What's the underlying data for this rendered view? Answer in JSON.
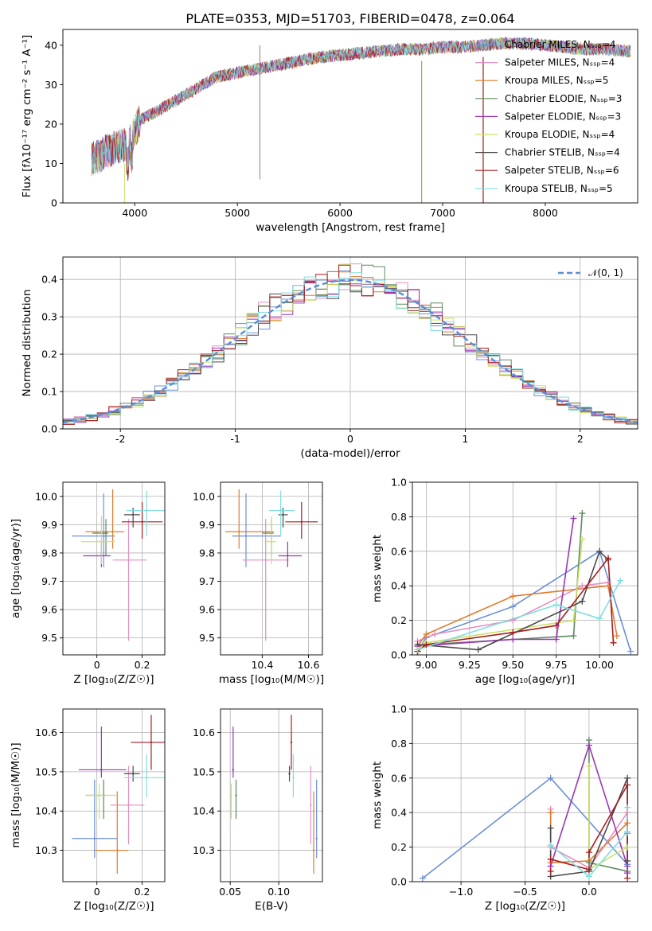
{
  "colors": {
    "Chabrier MILES": "#6a8fd8",
    "Salpeter MILES": "#e58fc1",
    "Kroupa MILES": "#e07b2c",
    "Chabrier ELODIE": "#5e8a5e",
    "Salpeter ELODIE": "#9b35b5",
    "Kroupa ELODIE": "#cbe066",
    "Chabrier STELIB": "#4a4a4a",
    "Salpeter STELIB": "#a81c1c",
    "Kroupa STELIB": "#80dde0",
    "gauss": "#5b8bd9"
  },
  "chart_data": [
    {
      "id": "spectrum",
      "type": "line",
      "title": "PLATE=0353, MJD=51703, FIBERID=0478, z=0.064",
      "xlabel": "wavelength [Angstrom, rest frame]",
      "ylabel": "Flux [fλ10⁻¹⁷ erg cm⁻² s⁻¹ A⁻¹]",
      "xlim": [
        3300,
        8900
      ],
      "ylim": [
        0,
        44
      ],
      "xticks": [
        4000,
        5000,
        6000,
        7000,
        8000
      ],
      "yticks": [
        0,
        10,
        20,
        30,
        40
      ],
      "continuum": [
        [
          3580,
          11
        ],
        [
          3800,
          14
        ],
        [
          3950,
          15
        ],
        [
          4050,
          21
        ],
        [
          4200,
          23
        ],
        [
          4400,
          26
        ],
        [
          4600,
          29
        ],
        [
          4800,
          32
        ],
        [
          5000,
          33
        ],
        [
          5200,
          34
        ],
        [
          5400,
          35
        ],
        [
          5600,
          36
        ],
        [
          5800,
          37
        ],
        [
          6000,
          37.5
        ],
        [
          6200,
          38
        ],
        [
          6400,
          38.5
        ],
        [
          6600,
          39
        ],
        [
          6800,
          39
        ],
        [
          7000,
          39.5
        ],
        [
          7200,
          39.5
        ],
        [
          7400,
          40
        ],
        [
          7600,
          40.5
        ],
        [
          7800,
          40.5
        ],
        [
          8000,
          40
        ],
        [
          8200,
          39.5
        ],
        [
          8400,
          39
        ],
        [
          8600,
          39
        ],
        [
          8800,
          38.5
        ]
      ],
      "legend_labels": [
        "Chabrier MILES, Nₛₛₚ=4",
        "Salpeter MILES, Nₛₛₚ=4",
        "Kroupa MILES, Nₛₛₚ=5",
        "Chabrier ELODIE, Nₛₛₚ=3",
        "Salpeter ELODIE, Nₛₛₚ=3",
        "Kroupa ELODIE, Nₛₛₚ=4",
        "Chabrier STELIB, Nₛₛₚ=4",
        "Salpeter STELIB, Nₛₛₚ=6",
        "Kroupa STELIB, Nₛₛₚ=5"
      ],
      "legend_models": [
        "Chabrier MILES",
        "Salpeter MILES",
        "Kroupa MILES",
        "Chabrier ELODIE",
        "Salpeter ELODIE",
        "Kroupa ELODIE",
        "Chabrier STELIB",
        "Salpeter STELIB",
        "Kroupa STELIB"
      ],
      "legend_position": "right"
    },
    {
      "id": "residuals",
      "type": "histogram",
      "xlabel": "(data-model)/error",
      "ylabel": "Normed distribution",
      "xlim": [
        -2.5,
        2.5
      ],
      "ylim": [
        0,
        0.46
      ],
      "xticks": [
        -2,
        -1,
        0,
        1,
        2
      ],
      "yticks": [
        0.0,
        0.1,
        0.2,
        0.3,
        0.4
      ],
      "bin_width": 0.1,
      "legend": "𝒩(0, 1)",
      "legend_position": "top-right",
      "series_models": [
        "Chabrier MILES",
        "Salpeter MILES",
        "Kroupa MILES",
        "Chabrier ELODIE",
        "Salpeter ELODIE",
        "Kroupa ELODIE",
        "Chabrier STELIB",
        "Salpeter STELIB",
        "Kroupa STELIB"
      ]
    },
    {
      "id": "age-vs-Z",
      "type": "scatter",
      "xlabel": "Z [log₁₀(Z/Z☉)]",
      "ylabel": "age  [log₁₀(age/yr)]",
      "xlim": [
        -0.15,
        0.3
      ],
      "ylim": [
        9.44,
        10.05
      ],
      "xticks": [
        0.0,
        0.2
      ],
      "yticks": [
        9.5,
        9.6,
        9.7,
        9.8,
        9.9,
        10.0
      ],
      "points": [
        {
          "model": "Chabrier MILES",
          "x": 0.03,
          "y": 9.86,
          "xerr": [
            0.14,
            0.05
          ],
          "yerr": [
            0.11,
            0.15
          ]
        },
        {
          "model": "Salpeter MILES",
          "x": 0.14,
          "y": 9.775,
          "xerr": [
            0.07,
            0.08
          ],
          "yerr": [
            0.285,
            0.145
          ]
        },
        {
          "model": "Kroupa MILES",
          "x": 0.07,
          "y": 9.875,
          "xerr": [
            0.12,
            0.05
          ],
          "yerr": [
            0.06,
            0.15
          ]
        },
        {
          "model": "Chabrier ELODIE",
          "x": 0.04,
          "y": 9.87,
          "xerr": [
            0.06,
            0.01
          ],
          "yerr": [
            0.08,
            0.05
          ]
        },
        {
          "model": "Salpeter ELODIE",
          "x": 0.02,
          "y": 9.79,
          "xerr": [
            0.08,
            0.04
          ],
          "yerr": [
            0.04,
            0.05
          ]
        },
        {
          "model": "Kroupa ELODIE",
          "x": 0.02,
          "y": 9.84,
          "xerr": [
            0.09,
            0.06
          ],
          "yerr": [
            0.08,
            0.09
          ]
        },
        {
          "model": "Chabrier STELIB",
          "x": 0.16,
          "y": 9.935,
          "xerr": [
            0.04,
            0.03
          ],
          "yerr": [
            0.045,
            0.025
          ]
        },
        {
          "model": "Salpeter STELIB",
          "x": 0.2,
          "y": 9.91,
          "xerr": [
            0.09,
            0.09
          ],
          "yerr": [
            0.06,
            0.07
          ]
        },
        {
          "model": "Kroupa STELIB",
          "x": 0.22,
          "y": 9.95,
          "xerr": [
            0.09,
            0.1
          ],
          "yerr": [
            0.09,
            0.07
          ]
        }
      ]
    },
    {
      "id": "age-vs-mass",
      "type": "scatter",
      "xlabel": "mass [log₁₀(M/M☉)]",
      "ylabel": "",
      "xlim": [
        10.22,
        10.66
      ],
      "ylim": [
        9.44,
        10.05
      ],
      "xticks": [
        10.4,
        10.6
      ],
      "yticks": [
        9.5,
        9.6,
        9.7,
        9.8,
        9.9,
        10.0
      ],
      "points": [
        {
          "model": "Chabrier MILES",
          "x": 10.33,
          "y": 9.86,
          "xerr": [
            0.06,
            0.15
          ],
          "yerr": [
            0.11,
            0.15
          ]
        },
        {
          "model": "Salpeter MILES",
          "x": 10.415,
          "y": 9.775,
          "xerr": [
            0.1,
            0.1
          ],
          "yerr": [
            0.285,
            0.145
          ]
        },
        {
          "model": "Kroupa MILES",
          "x": 10.3,
          "y": 9.875,
          "xerr": [
            0.06,
            0.15
          ],
          "yerr": [
            0.06,
            0.15
          ]
        },
        {
          "model": "Chabrier ELODIE",
          "x": 10.44,
          "y": 9.87,
          "xerr": [
            0.04,
            0.01
          ],
          "yerr": [
            0.08,
            0.05
          ]
        },
        {
          "model": "Salpeter ELODIE",
          "x": 10.51,
          "y": 9.79,
          "xerr": [
            0.04,
            0.06
          ],
          "yerr": [
            0.04,
            0.05
          ]
        },
        {
          "model": "Kroupa ELODIE",
          "x": 10.44,
          "y": 9.84,
          "xerr": [
            0.03,
            0.02
          ],
          "yerr": [
            0.08,
            0.09
          ]
        },
        {
          "model": "Chabrier STELIB",
          "x": 10.49,
          "y": 9.935,
          "xerr": [
            0.02,
            0.02
          ],
          "yerr": [
            0.045,
            0.025
          ]
        },
        {
          "model": "Salpeter STELIB",
          "x": 10.57,
          "y": 9.91,
          "xerr": [
            0.07,
            0.07
          ],
          "yerr": [
            0.06,
            0.07
          ]
        },
        {
          "model": "Kroupa STELIB",
          "x": 10.48,
          "y": 9.95,
          "xerr": [
            0.05,
            0.06
          ],
          "yerr": [
            0.09,
            0.07
          ]
        }
      ]
    },
    {
      "id": "weight-vs-age",
      "type": "line",
      "xlabel": "age  [log₁₀(age/yr)]",
      "ylabel": "mass weight",
      "xlim": [
        8.92,
        10.22
      ],
      "ylim": [
        0,
        1.0
      ],
      "xticks": [
        9.0,
        9.25,
        9.5,
        9.75,
        10.0
      ],
      "xtick_labels": [
        "9.00",
        "9.25",
        "9.50",
        "9.75",
        "10.00"
      ],
      "yticks": [
        0.0,
        0.2,
        0.4,
        0.6,
        0.8,
        1.0
      ],
      "series": [
        {
          "model": "Chabrier MILES",
          "x": [
            8.95,
            9.0,
            9.5,
            10.0,
            10.18
          ],
          "y": [
            0.02,
            0.1,
            0.28,
            0.6,
            0.02
          ]
        },
        {
          "model": "Salpeter MILES",
          "x": [
            8.95,
            9.05,
            9.5,
            9.9,
            10.05
          ],
          "y": [
            0.08,
            0.12,
            0.2,
            0.4,
            0.42
          ]
        },
        {
          "model": "Kroupa MILES",
          "x": [
            8.95,
            9.0,
            9.5,
            10.05,
            10.1
          ],
          "y": [
            0.05,
            0.12,
            0.34,
            0.4,
            0.11
          ]
        },
        {
          "model": "Chabrier ELODIE",
          "x": [
            8.95,
            9.0,
            9.85,
            9.9
          ],
          "y": [
            0.02,
            0.06,
            0.11,
            0.82
          ]
        },
        {
          "model": "Salpeter ELODIE",
          "x": [
            8.95,
            9.5,
            9.75,
            9.85
          ],
          "y": [
            0.05,
            0.09,
            0.09,
            0.79
          ]
        },
        {
          "model": "Kroupa ELODIE",
          "x": [
            8.95,
            9.0,
            9.85,
            9.9
          ],
          "y": [
            0.03,
            0.07,
            0.2,
            0.67
          ]
        },
        {
          "model": "Chabrier STELIB",
          "x": [
            8.95,
            9.3,
            9.9,
            10.0,
            10.05
          ],
          "y": [
            0.06,
            0.03,
            0.31,
            0.6,
            0.55
          ]
        },
        {
          "model": "Salpeter STELIB",
          "x": [
            8.95,
            9.0,
            9.5,
            9.75,
            10.05,
            10.08
          ],
          "y": [
            0.02,
            0.06,
            0.13,
            0.17,
            0.56,
            0.07
          ]
        },
        {
          "model": "Kroupa STELIB",
          "x": [
            8.95,
            9.75,
            10.0,
            10.12
          ],
          "y": [
            0.03,
            0.29,
            0.21,
            0.43
          ]
        }
      ]
    },
    {
      "id": "mass-vs-Z",
      "type": "scatter",
      "xlabel": "Z [log₁₀(Z/Z☉)]",
      "ylabel": "mass [log₁₀(M/M☉)]",
      "xlim": [
        -0.15,
        0.3
      ],
      "ylim": [
        10.22,
        10.66
      ],
      "xticks": [
        0.0,
        0.2
      ],
      "yticks": [
        10.3,
        10.4,
        10.5,
        10.6
      ],
      "points": [
        {
          "model": "Chabrier MILES",
          "x": -0.01,
          "y": 10.33,
          "xerr": [
            0.1,
            0.1
          ],
          "yerr": [
            0.05,
            0.15
          ]
        },
        {
          "model": "Salpeter MILES",
          "x": 0.14,
          "y": 10.415,
          "xerr": [
            0.08,
            0.07
          ],
          "yerr": [
            0.1,
            0.1
          ]
        },
        {
          "model": "Kroupa MILES",
          "x": 0.09,
          "y": 10.3,
          "xerr": [
            0.1,
            0.05
          ],
          "yerr": [
            0.06,
            0.15
          ]
        },
        {
          "model": "Chabrier ELODIE",
          "x": 0.03,
          "y": 10.44,
          "xerr": [
            0.08,
            0.01
          ],
          "yerr": [
            0.06,
            0.04
          ]
        },
        {
          "model": "Salpeter ELODIE",
          "x": 0.02,
          "y": 10.505,
          "xerr": [
            0.1,
            0.11
          ],
          "yerr": [
            0.02,
            0.11
          ]
        },
        {
          "model": "Kroupa ELODIE",
          "x": 0.01,
          "y": 10.44,
          "xerr": [
            0.06,
            0.08
          ],
          "yerr": [
            0.06,
            0.03
          ]
        },
        {
          "model": "Chabrier STELIB",
          "x": 0.16,
          "y": 10.495,
          "xerr": [
            0.04,
            0.03
          ],
          "yerr": [
            0.02,
            0.02
          ]
        },
        {
          "model": "Salpeter STELIB",
          "x": 0.24,
          "y": 10.575,
          "xerr": [
            0.09,
            0.07
          ],
          "yerr": [
            0.07,
            0.07
          ]
        },
        {
          "model": "Kroupa STELIB",
          "x": 0.22,
          "y": 10.485,
          "xerr": [
            0.1,
            0.09
          ],
          "yerr": [
            0.05,
            0.06
          ]
        }
      ]
    },
    {
      "id": "mass-vs-EBV",
      "type": "scatter",
      "xlabel": "E(B-V)",
      "ylabel": "",
      "xlim": [
        0.04,
        0.145
      ],
      "ylim": [
        10.22,
        10.66
      ],
      "xticks": [
        0.05,
        0.1
      ],
      "xtick_labels": [
        "0.05",
        "0.10"
      ],
      "yticks": [
        10.3,
        10.4,
        10.5,
        10.6
      ],
      "points": [
        {
          "model": "Chabrier MILES",
          "x": 0.139,
          "y": 10.33,
          "xerr": [
            0,
            0
          ],
          "yerr": [
            0.05,
            0.15
          ]
        },
        {
          "model": "Salpeter MILES",
          "x": 0.133,
          "y": 10.415,
          "xerr": [
            0,
            0
          ],
          "yerr": [
            0.1,
            0.1
          ]
        },
        {
          "model": "Kroupa MILES",
          "x": 0.136,
          "y": 10.3,
          "xerr": [
            0,
            0
          ],
          "yerr": [
            0.06,
            0.15
          ]
        },
        {
          "model": "Chabrier ELODIE",
          "x": 0.056,
          "y": 10.44,
          "xerr": [
            0,
            0
          ],
          "yerr": [
            0.06,
            0.04
          ]
        },
        {
          "model": "Salpeter ELODIE",
          "x": 0.053,
          "y": 10.505,
          "xerr": [
            0,
            0
          ],
          "yerr": [
            0.02,
            0.11
          ]
        },
        {
          "model": "Kroupa ELODIE",
          "x": 0.051,
          "y": 10.44,
          "xerr": [
            0,
            0
          ],
          "yerr": [
            0.06,
            0.03
          ]
        },
        {
          "model": "Chabrier STELIB",
          "x": 0.111,
          "y": 10.495,
          "xerr": [
            0,
            0
          ],
          "yerr": [
            0.02,
            0.02
          ]
        },
        {
          "model": "Salpeter STELIB",
          "x": 0.113,
          "y": 10.575,
          "xerr": [
            0,
            0
          ],
          "yerr": [
            0.07,
            0.07
          ]
        },
        {
          "model": "Kroupa STELIB",
          "x": 0.115,
          "y": 10.485,
          "xerr": [
            0,
            0
          ],
          "yerr": [
            0.05,
            0.06
          ]
        }
      ]
    },
    {
      "id": "weight-vs-Z",
      "type": "line",
      "xlabel": "Z [log₁₀(Z/Z☉)]",
      "ylabel": "mass weight",
      "xlim": [
        -1.38,
        0.38
      ],
      "ylim": [
        0,
        1.0
      ],
      "xticks": [
        -1.0,
        -0.5,
        0.0
      ],
      "xtick_labels": [
        "−1.0",
        "−0.5",
        "0.0"
      ],
      "yticks": [
        0.0,
        0.2,
        0.4,
        0.6,
        0.8,
        1.0
      ],
      "series": [
        {
          "model": "Chabrier MILES",
          "x": [
            -1.3,
            -0.3,
            0.3,
            0.3
          ],
          "y": [
            0.02,
            0.6,
            0.1,
            0.28
          ]
        },
        {
          "model": "Salpeter MILES",
          "x": [
            -0.3,
            -0.3,
            0.0,
            0.3
          ],
          "y": [
            0.42,
            0.2,
            0.08,
            0.4
          ]
        },
        {
          "model": "Kroupa MILES",
          "x": [
            -0.3,
            -0.3,
            0.0,
            0.3,
            0.3
          ],
          "y": [
            0.4,
            0.11,
            0.12,
            0.34,
            0.05
          ]
        },
        {
          "model": "Chabrier ELODIE",
          "x": [
            0.0,
            0.0,
            0.3
          ],
          "y": [
            0.82,
            0.11,
            0.06
          ]
        },
        {
          "model": "Salpeter ELODIE",
          "x": [
            -0.3,
            0.0,
            0.3,
            0.3
          ],
          "y": [
            0.09,
            0.79,
            0.09,
            0.05
          ]
        },
        {
          "model": "Kroupa ELODIE",
          "x": [
            0.0,
            0.0,
            0.3
          ],
          "y": [
            0.67,
            0.07,
            0.2
          ]
        },
        {
          "model": "Chabrier STELIB",
          "x": [
            -0.3,
            -0.3,
            0.0,
            0.3,
            0.3
          ],
          "y": [
            0.31,
            0.03,
            0.06,
            0.6,
            0.12
          ]
        },
        {
          "model": "Salpeter STELIB",
          "x": [
            -0.3,
            -0.3,
            0.0,
            0.0,
            0.3,
            0.3
          ],
          "y": [
            0.06,
            0.13,
            0.07,
            0.17,
            0.56,
            0.02
          ]
        },
        {
          "model": "Kroupa STELIB",
          "x": [
            -0.3,
            0.0,
            0.3,
            0.3
          ],
          "y": [
            0.21,
            0.03,
            0.29,
            0.43
          ]
        }
      ]
    }
  ]
}
